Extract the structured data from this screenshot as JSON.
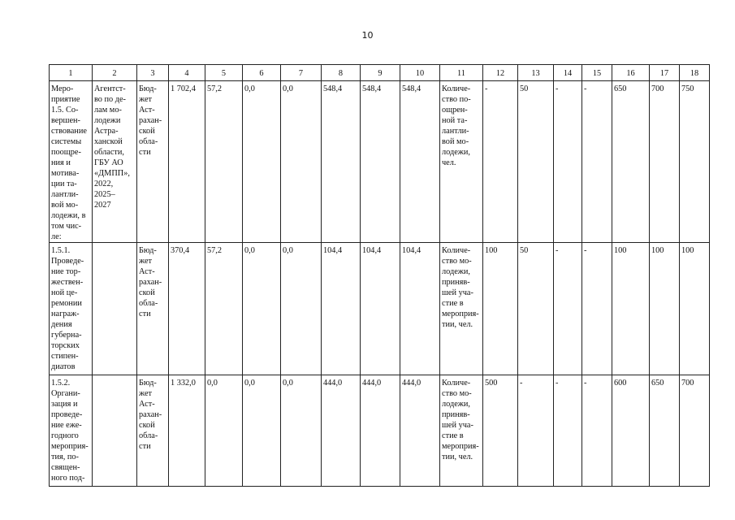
{
  "header": {
    "page_number": "10"
  },
  "table": {
    "columns": [
      "1",
      "2",
      "3",
      "4",
      "5",
      "6",
      "7",
      "8",
      "9",
      "10",
      "11",
      "12",
      "13",
      "14",
      "15",
      "16",
      "17",
      "18"
    ],
    "rows": [
      [
        "Меро-\nприятие\n1.5. Со-\nвершен-\nствование\nсистемы\nпоощре-\nния и\nмотива-\nции та-\nлантли-\nвой мо-\nлодежи, в\nтом чис-\nле:",
        "Агентст-\nво по де-\nлам мо-\nлодежи\nАстра-\nханской\nобласти,\nГБУ АО\n«ДМПП»,\n2022,\n2025–\n2027",
        "Бюд-\nжет\nАст-\nрахан-\nской\nобла-\nсти",
        "1 702,4",
        "57,2",
        "0,0",
        "0,0",
        "548,4",
        "548,4",
        "548,4",
        "Количе-\nство по-\nощрен-\nной та-\nлантли-\nвой мо-\nлодежи,\nчел.",
        "-",
        "50",
        "-",
        "-",
        "650",
        "700",
        "750"
      ],
      [
        "1.5.1.\nПроведе-\nние тор-\nжествен-\nной це-\nремонии\nнаграж-\nдения\nгуберна-\nторских\nстипен-\nдиатов",
        null,
        "Бюд-\nжет\nАст-\nрахан-\nской\nобла-\nсти",
        "370,4",
        "57,2",
        "0,0",
        "0,0",
        "104,4",
        "104,4",
        "104,4",
        "Количе-\nство мо-\nлодежи,\nприняв-\nшей уча-\nстие в\nмероприя-\nтии, чел.",
        "100",
        "50",
        "-",
        "-",
        "100",
        "100",
        "100"
      ],
      [
        "1.5.2.\nОргани-\nзация и\nпроведе-\nние еже-\nгодного\nмероприя-\nтия, по-\nсвящен-\nного под-",
        null,
        "Бюд-\nжет\nАст-\nрахан-\nской\nобла-\nсти",
        "1 332,0",
        "0,0",
        "0,0",
        "0,0",
        "444,0",
        "444,0",
        "444,0",
        "Количе-\nство мо-\nлодежи,\nприняв-\nшей уча-\nстие в\nмероприя-\nтии, чел.",
        "500",
        "-",
        "-",
        "-",
        "600",
        "650",
        "700"
      ]
    ]
  }
}
